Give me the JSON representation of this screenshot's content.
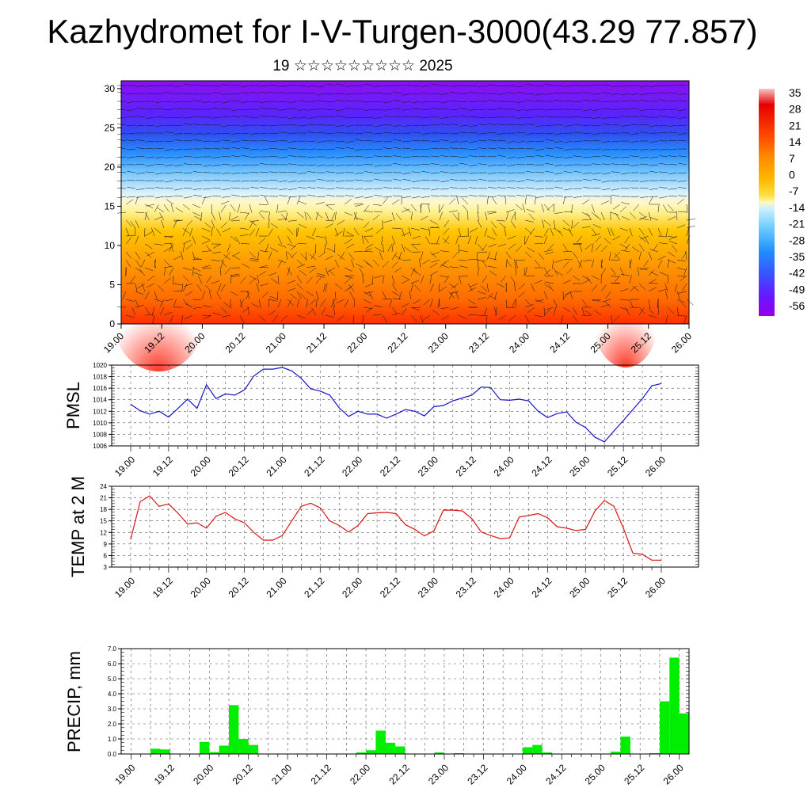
{
  "header": {
    "title": "Kazhydromet for I-V-Turgen-3000(43.29 77.857)",
    "subtitle": "19 ☆☆☆☆☆☆☆☆☆ 2025"
  },
  "colors": {
    "pmsl_line": "#1414c8",
    "temp_line": "#dc1414",
    "precip_bar": "#00ee00",
    "grid": "#555555"
  },
  "x_tick_labels": [
    "19.00",
    "19.12",
    "20.00",
    "20.12",
    "21.00",
    "21.12",
    "22.00",
    "22.12",
    "23.00",
    "23.12",
    "24.00",
    "24.12",
    "25.00",
    "25.12",
    "26.00"
  ],
  "chart_data": [
    {
      "type": "heatmap",
      "id": "vertical-section",
      "title": "",
      "y_range": [
        0,
        31
      ],
      "y_ticks": [
        "0",
        "5",
        "10",
        "15",
        "20",
        "25",
        "30"
      ],
      "colorbar_labels": [
        "35",
        "28",
        "21",
        "14",
        "7",
        "0",
        "-7",
        "-14",
        "-21",
        "-28",
        "-35",
        "-42",
        "-49",
        "-56"
      ],
      "colorbar_colors": [
        "#f5c8c8",
        "#e60000",
        "#ff2a00",
        "#ff6a00",
        "#ff9a00",
        "#ffc400",
        "#ffee60",
        "#fff8c0",
        "#c8f0ff",
        "#64c8ff",
        "#1e96ff",
        "#3264ff",
        "#5032ff",
        "#7800ff",
        "#9600e6"
      ],
      "note_overlay": "wind barbs"
    },
    {
      "type": "line",
      "id": "pmsl",
      "ylabel": "PMSL",
      "ylim": [
        1006,
        1020
      ],
      "y_ticks": [
        "1006",
        "1008",
        "1010",
        "1012",
        "1014",
        "1016",
        "1018",
        "1020"
      ],
      "x": [
        0,
        3,
        6,
        9,
        12,
        15,
        18,
        21,
        24,
        27,
        30,
        33,
        36,
        39,
        42,
        45,
        48,
        51,
        54,
        57,
        60,
        63,
        66,
        69,
        72,
        75,
        78,
        81,
        84,
        87,
        90,
        93,
        96,
        99,
        102,
        105,
        108,
        111,
        114,
        117,
        120,
        123,
        126,
        129,
        132,
        135,
        138,
        141,
        144,
        147,
        150,
        153,
        156,
        159,
        162,
        165,
        168
      ],
      "values": [
        1013.2,
        1012.1,
        1011.5,
        1012.0,
        1011.0,
        1012.5,
        1014.1,
        1012.5,
        1016.6,
        1014.2,
        1015.0,
        1014.8,
        1015.7,
        1018.1,
        1019.3,
        1019.3,
        1019.6,
        1019.0,
        1017.7,
        1015.9,
        1015.5,
        1014.8,
        1012.6,
        1011.1,
        1012.0,
        1011.5,
        1011.5,
        1010.8,
        1011.5,
        1012.3,
        1012.0,
        1011.2,
        1012.8,
        1013.0,
        1013.8,
        1014.3,
        1014.8,
        1016.2,
        1016.1,
        1014.0,
        1013.9,
        1014.1,
        1013.8,
        1012.0,
        1010.9,
        1011.6,
        1011.9,
        1010.1,
        1009.2,
        1007.5,
        1006.7,
        1008.6,
        1010.4,
        1012.3,
        1014.2,
        1016.4,
        1016.8
      ]
    },
    {
      "type": "line",
      "id": "temp-2m",
      "ylabel": "TEMP at 2 M",
      "ylim": [
        3,
        24
      ],
      "y_ticks": [
        "3",
        "6",
        "9",
        "12",
        "15",
        "18",
        "21",
        "24"
      ],
      "x": [
        0,
        3,
        6,
        9,
        12,
        15,
        18,
        21,
        24,
        27,
        30,
        33,
        36,
        39,
        42,
        45,
        48,
        51,
        54,
        57,
        60,
        63,
        66,
        69,
        72,
        75,
        78,
        81,
        84,
        87,
        90,
        93,
        96,
        99,
        102,
        105,
        108,
        111,
        114,
        117,
        120,
        123,
        126,
        129,
        132,
        135,
        138,
        141,
        144,
        147,
        150,
        153,
        156,
        159,
        162,
        165,
        168
      ],
      "values": [
        10.2,
        20.0,
        21.5,
        18.8,
        19.4,
        17.0,
        14.2,
        14.5,
        13.1,
        16.2,
        17.2,
        15.5,
        14.5,
        12.0,
        10.0,
        10.0,
        11.2,
        15.0,
        18.8,
        19.6,
        18.4,
        15.0,
        13.8,
        12.1,
        13.8,
        16.9,
        17.1,
        17.2,
        16.9,
        14.0,
        12.8,
        11.1,
        12.4,
        17.8,
        17.8,
        17.6,
        15.6,
        12.1,
        11.2,
        10.4,
        10.6,
        16.0,
        16.4,
        16.9,
        15.8,
        13.5,
        13.1,
        12.5,
        12.8,
        17.6,
        20.3,
        18.8,
        13.1,
        6.6,
        6.3,
        4.8,
        4.8
      ]
    },
    {
      "type": "bar",
      "id": "precip",
      "ylabel": "PRECIP, mm",
      "ylim": [
        0,
        7
      ],
      "y_ticks": [
        "0.0",
        "1.0",
        "2.0",
        "3.0",
        "4.0",
        "5.0",
        "6.0",
        "7.0"
      ],
      "x_start": [
        9,
        12,
        24,
        27,
        30,
        33,
        36,
        39,
        72,
        75,
        78,
        81,
        84,
        96,
        102,
        123,
        126,
        129,
        150,
        153,
        162,
        165,
        168,
        171
      ],
      "values": [
        0.35,
        0.3,
        0.8,
        0.12,
        0.55,
        3.25,
        1.0,
        0.6,
        0.1,
        0.25,
        1.55,
        0.75,
        0.5,
        0.1,
        0.05,
        0.45,
        0.6,
        0.1,
        0.15,
        1.15,
        0.05,
        3.5,
        6.4,
        2.7
      ]
    }
  ]
}
